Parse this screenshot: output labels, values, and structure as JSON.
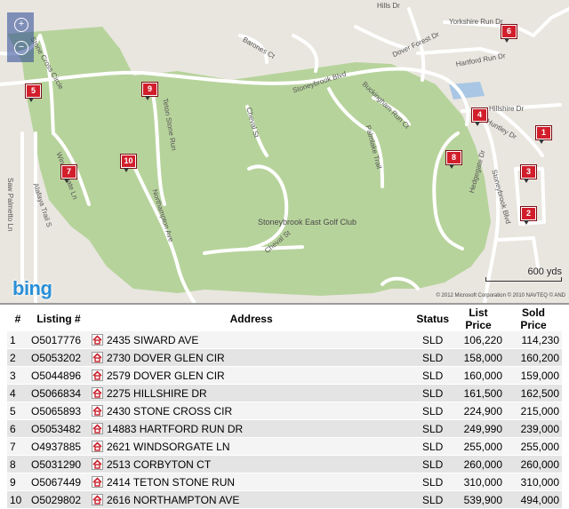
{
  "map": {
    "street_labels": {
      "hills_dr": "Hills Dr",
      "yorkshire": "Yorkshire Run Dr",
      "stone_cross": "Stone Cross Circle",
      "barones": "Barones Ct",
      "dover_forest": "Dover Forest Dr",
      "hartford": "Hartford Run Dr",
      "stoneybrook": "Stoneybrook Blvd",
      "buckingham": "Buckingham Run Ct",
      "hillshire": "Hillshire Dr",
      "huntley": "Huntley Dr",
      "teton": "Teton Stone Run",
      "cheval_st": "Cheval St",
      "palmlake": "Palmlake Trail",
      "windsorgate": "Windsorgate Ln",
      "hedgegate": "Hedgegate Dr",
      "stoneybrook_blvd2": "Stoneybrook Blvd",
      "saw_palmetto": "Saw Palmetto Ln",
      "alafaya": "Alafaya Trail S",
      "northampton": "Northampton Ave",
      "cheval_st2": "Cheval St"
    },
    "poi_label": "Stoneybrook East Golf Club",
    "pins": [
      "1",
      "2",
      "3",
      "4",
      "5",
      "6",
      "7",
      "8",
      "9",
      "10"
    ],
    "logo": "bing",
    "scale_label": "600 yds",
    "copyright": "© 2012 Microsoft Corporation   © 2010 NAVTEQ   © AND",
    "colors": {
      "golf": "#b5d29a",
      "road": "#ffffff",
      "water": "#a9c7e4",
      "pin": "#d21e2b"
    }
  },
  "table": {
    "headers": {
      "index": "#",
      "listing": "Listing #",
      "address": "Address",
      "status": "Status",
      "list_price": "List Price",
      "sold_price": "Sold Price"
    },
    "rows": [
      {
        "n": "1",
        "listing": "O5017776",
        "address": "2435 SIWARD AVE",
        "status": "SLD",
        "list": "106,220",
        "sold": "114,230"
      },
      {
        "n": "2",
        "listing": "O5053202",
        "address": "2730 DOVER GLEN CIR",
        "status": "SLD",
        "list": "158,000",
        "sold": "160,200"
      },
      {
        "n": "3",
        "listing": "O5044896",
        "address": "2579 DOVER GLEN CIR",
        "status": "SLD",
        "list": "160,000",
        "sold": "159,000"
      },
      {
        "n": "4",
        "listing": "O5066834",
        "address": "2275 HILLSHIRE DR",
        "status": "SLD",
        "list": "161,500",
        "sold": "162,500"
      },
      {
        "n": "5",
        "listing": "O5065893",
        "address": "2430 STONE CROSS CIR",
        "status": "SLD",
        "list": "224,900",
        "sold": "215,000"
      },
      {
        "n": "6",
        "listing": "O5053482",
        "address": "14883 HARTFORD RUN DR",
        "status": "SLD",
        "list": "249,990",
        "sold": "239,000"
      },
      {
        "n": "7",
        "listing": "O4937885",
        "address": "2621 WINDSORGATE LN",
        "status": "SLD",
        "list": "255,000",
        "sold": "255,000"
      },
      {
        "n": "8",
        "listing": "O5031290",
        "address": "2513 CORBYTON CT",
        "status": "SLD",
        "list": "260,000",
        "sold": "260,000"
      },
      {
        "n": "9",
        "listing": "O5067449",
        "address": "2414 TETON STONE RUN",
        "status": "SLD",
        "list": "310,000",
        "sold": "310,000"
      },
      {
        "n": "10",
        "listing": "O5029802",
        "address": "2616 NORTHAMPTON AVE",
        "status": "SLD",
        "list": "539,900",
        "sold": "494,000"
      }
    ]
  }
}
